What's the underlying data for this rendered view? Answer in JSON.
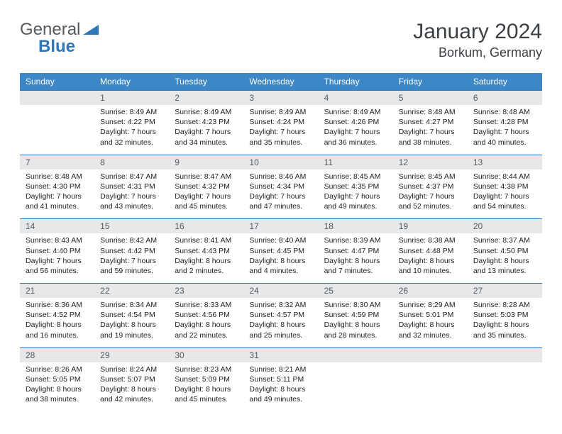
{
  "brand": {
    "part1": "General",
    "part2": "Blue"
  },
  "title": "January 2024",
  "location": "Borkum, Germany",
  "colors": {
    "header_bg": "#3d87c7",
    "header_text": "#ffffff",
    "daynum_bg": "#e7e8e9",
    "row_border": "#2f77bb",
    "logo_accent": "#2f77bb",
    "text": "#333333"
  },
  "weekdays": [
    "Sunday",
    "Monday",
    "Tuesday",
    "Wednesday",
    "Thursday",
    "Friday",
    "Saturday"
  ],
  "weeks": [
    [
      {
        "blank": true
      },
      {
        "n": "1",
        "sunrise": "8:49 AM",
        "sunset": "4:22 PM",
        "daylight": "7 hours and 32 minutes."
      },
      {
        "n": "2",
        "sunrise": "8:49 AM",
        "sunset": "4:23 PM",
        "daylight": "7 hours and 34 minutes."
      },
      {
        "n": "3",
        "sunrise": "8:49 AM",
        "sunset": "4:24 PM",
        "daylight": "7 hours and 35 minutes."
      },
      {
        "n": "4",
        "sunrise": "8:49 AM",
        "sunset": "4:26 PM",
        "daylight": "7 hours and 36 minutes."
      },
      {
        "n": "5",
        "sunrise": "8:48 AM",
        "sunset": "4:27 PM",
        "daylight": "7 hours and 38 minutes."
      },
      {
        "n": "6",
        "sunrise": "8:48 AM",
        "sunset": "4:28 PM",
        "daylight": "7 hours and 40 minutes."
      }
    ],
    [
      {
        "n": "7",
        "sunrise": "8:48 AM",
        "sunset": "4:30 PM",
        "daylight": "7 hours and 41 minutes."
      },
      {
        "n": "8",
        "sunrise": "8:47 AM",
        "sunset": "4:31 PM",
        "daylight": "7 hours and 43 minutes."
      },
      {
        "n": "9",
        "sunrise": "8:47 AM",
        "sunset": "4:32 PM",
        "daylight": "7 hours and 45 minutes."
      },
      {
        "n": "10",
        "sunrise": "8:46 AM",
        "sunset": "4:34 PM",
        "daylight": "7 hours and 47 minutes."
      },
      {
        "n": "11",
        "sunrise": "8:45 AM",
        "sunset": "4:35 PM",
        "daylight": "7 hours and 49 minutes."
      },
      {
        "n": "12",
        "sunrise": "8:45 AM",
        "sunset": "4:37 PM",
        "daylight": "7 hours and 52 minutes."
      },
      {
        "n": "13",
        "sunrise": "8:44 AM",
        "sunset": "4:38 PM",
        "daylight": "7 hours and 54 minutes."
      }
    ],
    [
      {
        "n": "14",
        "sunrise": "8:43 AM",
        "sunset": "4:40 PM",
        "daylight": "7 hours and 56 minutes."
      },
      {
        "n": "15",
        "sunrise": "8:42 AM",
        "sunset": "4:42 PM",
        "daylight": "7 hours and 59 minutes."
      },
      {
        "n": "16",
        "sunrise": "8:41 AM",
        "sunset": "4:43 PM",
        "daylight": "8 hours and 2 minutes."
      },
      {
        "n": "17",
        "sunrise": "8:40 AM",
        "sunset": "4:45 PM",
        "daylight": "8 hours and 4 minutes."
      },
      {
        "n": "18",
        "sunrise": "8:39 AM",
        "sunset": "4:47 PM",
        "daylight": "8 hours and 7 minutes."
      },
      {
        "n": "19",
        "sunrise": "8:38 AM",
        "sunset": "4:48 PM",
        "daylight": "8 hours and 10 minutes."
      },
      {
        "n": "20",
        "sunrise": "8:37 AM",
        "sunset": "4:50 PM",
        "daylight": "8 hours and 13 minutes."
      }
    ],
    [
      {
        "n": "21",
        "sunrise": "8:36 AM",
        "sunset": "4:52 PM",
        "daylight": "8 hours and 16 minutes."
      },
      {
        "n": "22",
        "sunrise": "8:34 AM",
        "sunset": "4:54 PM",
        "daylight": "8 hours and 19 minutes."
      },
      {
        "n": "23",
        "sunrise": "8:33 AM",
        "sunset": "4:56 PM",
        "daylight": "8 hours and 22 minutes."
      },
      {
        "n": "24",
        "sunrise": "8:32 AM",
        "sunset": "4:57 PM",
        "daylight": "8 hours and 25 minutes."
      },
      {
        "n": "25",
        "sunrise": "8:30 AM",
        "sunset": "4:59 PM",
        "daylight": "8 hours and 28 minutes."
      },
      {
        "n": "26",
        "sunrise": "8:29 AM",
        "sunset": "5:01 PM",
        "daylight": "8 hours and 32 minutes."
      },
      {
        "n": "27",
        "sunrise": "8:28 AM",
        "sunset": "5:03 PM",
        "daylight": "8 hours and 35 minutes."
      }
    ],
    [
      {
        "n": "28",
        "sunrise": "8:26 AM",
        "sunset": "5:05 PM",
        "daylight": "8 hours and 38 minutes."
      },
      {
        "n": "29",
        "sunrise": "8:24 AM",
        "sunset": "5:07 PM",
        "daylight": "8 hours and 42 minutes."
      },
      {
        "n": "30",
        "sunrise": "8:23 AM",
        "sunset": "5:09 PM",
        "daylight": "8 hours and 45 minutes."
      },
      {
        "n": "31",
        "sunrise": "8:21 AM",
        "sunset": "5:11 PM",
        "daylight": "8 hours and 49 minutes."
      },
      {
        "blank": true
      },
      {
        "blank": true
      },
      {
        "blank": true
      }
    ]
  ],
  "labels": {
    "sunrise": "Sunrise:",
    "sunset": "Sunset:",
    "daylight": "Daylight:"
  }
}
